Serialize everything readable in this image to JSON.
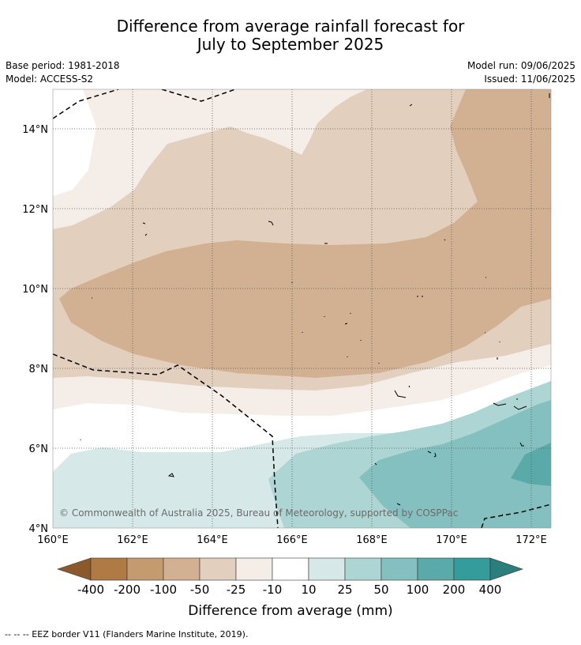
{
  "title": {
    "line1": "Difference from average rainfall forecast for",
    "line2": "July to September 2025"
  },
  "meta": {
    "base_period": "Base period: 1981-2018",
    "model": "Model: ACCESS-S2",
    "model_run": "Model run: 09/06/2025",
    "issued": "Issued: 11/06/2025"
  },
  "map": {
    "lat_labels": [
      "14°N",
      "12°N",
      "10°N",
      "8°N",
      "6°N",
      "4°N"
    ],
    "lon_labels": [
      "160°E",
      "162°E",
      "164°E",
      "166°E",
      "168°E",
      "170°E",
      "172°E"
    ],
    "copyright": "© Commonwealth of Australia 2025, Bureau of Meteorology, supported by COSPPac"
  },
  "colorbar": {
    "labels": [
      "-400",
      "-200",
      "-100",
      "-50",
      "-25",
      "-10",
      "10",
      "25",
      "50",
      "100",
      "200",
      "400"
    ],
    "colors": [
      "#8c5a2a",
      "#b07a45",
      "#c49a6f",
      "#d2b092",
      "#e2cfbe",
      "#f4ede8",
      "#ffffff",
      "#d6e9e8",
      "#acd5d4",
      "#84c0bf",
      "#5aaaa9",
      "#349c9a",
      "#2a7f7d"
    ],
    "label": "Difference from average (mm)"
  },
  "footer": {
    "legend_text": "--  --  -- EEZ border V11 (Flanders Marine Institute, 2019)."
  }
}
